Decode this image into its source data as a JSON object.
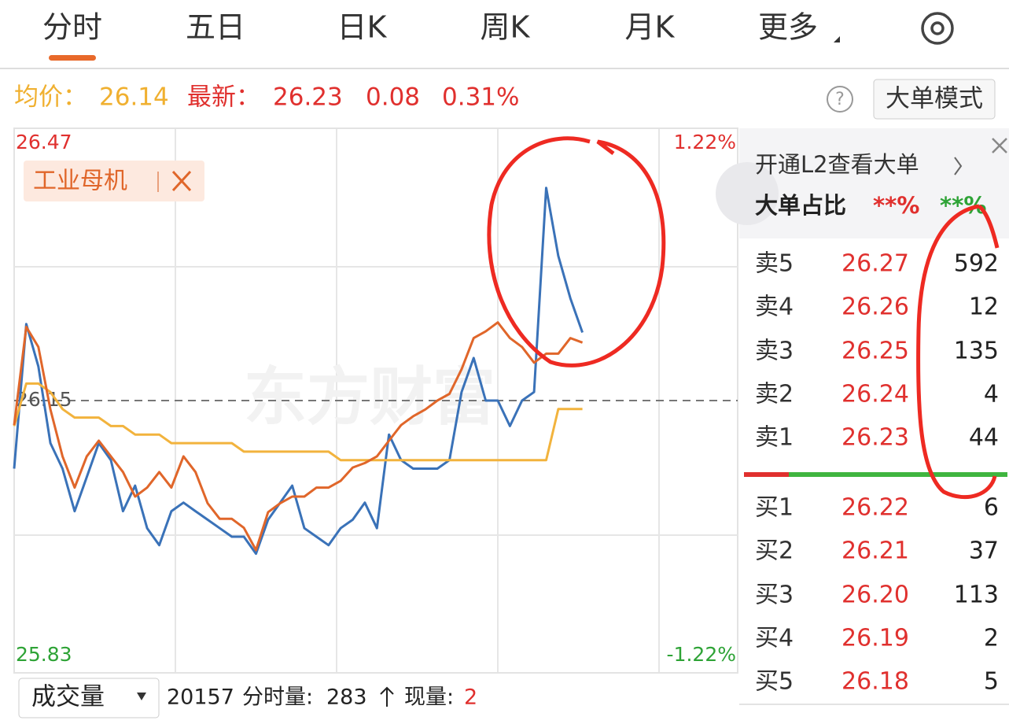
{
  "tabs": [
    "分时",
    "五日",
    "日K",
    "周K",
    "月K",
    "更多"
  ],
  "quote": {
    "avg_label": "均价：",
    "avg": "26.14",
    "latest_label": "最新：",
    "latest": "26.23",
    "change": "0.08",
    "change_pct": "0.31%"
  },
  "big_order_mode": "大单模式",
  "chart_data": {
    "type": "line",
    "tag": "工业母机",
    "watermark": "东方财富",
    "xlim": [
      0,
      240
    ],
    "x": [
      0,
      4.5,
      9,
      13.5,
      18,
      22.5,
      27,
      31.5,
      36,
      40.5,
      45,
      49.5,
      54,
      58.5,
      63,
      67.5,
      72,
      76.5,
      81,
      85.5,
      90,
      94.5,
      99,
      103.5,
      108,
      112.5,
      117,
      121.5,
      126,
      130.5,
      135,
      139.5,
      144,
      148.5,
      153,
      157.5,
      162,
      166.5,
      171,
      175.5,
      180,
      184.5,
      189,
      193.5,
      198,
      202.5,
      207,
      211.5
    ],
    "ylim": [
      25.83,
      26.47
    ],
    "yticks": [
      25.83,
      26.15,
      26.47
    ],
    "y2lim": [
      -1.22,
      1.22
    ],
    "y2ticks": [
      {
        "value": -1.22,
        "label": "-1.22%"
      },
      {
        "value": 1.22,
        "label": "1.22%"
      }
    ],
    "series": [
      {
        "color": "#3a72b8",
        "values": [
          26.07,
          26.24,
          26.19,
          26.1,
          26.07,
          26.02,
          26.06,
          26.1,
          26.08,
          26.02,
          26.05,
          26.0,
          25.98,
          26.02,
          26.03,
          26.02,
          26.01,
          26.0,
          25.99,
          25.99,
          25.97,
          26.01,
          26.03,
          26.05,
          26.0,
          25.99,
          25.98,
          26.0,
          26.01,
          26.03,
          26.0,
          26.11,
          26.08,
          26.07,
          26.07,
          26.07,
          26.08,
          26.16,
          26.2,
          26.15,
          26.15,
          26.12,
          26.15,
          26.16,
          26.4,
          26.32,
          26.27,
          26.23
        ]
      },
      {
        "color": "#f2b33d",
        "values": [
          26.12,
          26.17,
          26.17,
          26.16,
          26.14,
          26.13,
          26.13,
          26.13,
          26.12,
          26.12,
          26.11,
          26.11,
          26.11,
          26.1,
          26.1,
          26.1,
          26.1,
          26.1,
          26.1,
          26.09,
          26.09,
          26.09,
          26.09,
          26.09,
          26.09,
          26.09,
          26.09,
          26.08,
          26.08,
          26.08,
          26.08,
          26.08,
          26.08,
          26.08,
          26.08,
          26.08,
          26.08,
          26.08,
          26.08,
          26.08,
          26.08,
          26.08,
          26.08,
          26.08,
          26.08,
          26.14,
          26.14,
          26.14
        ]
      },
      {
        "color": "#e0662a",
        "axis": "y2",
        "values": [
          -0.11,
          0.33,
          0.24,
          -0.04,
          -0.25,
          -0.39,
          -0.25,
          -0.18,
          -0.25,
          -0.32,
          -0.43,
          -0.39,
          -0.32,
          -0.39,
          -0.25,
          -0.32,
          -0.46,
          -0.53,
          -0.53,
          -0.57,
          -0.67,
          -0.5,
          -0.46,
          -0.43,
          -0.43,
          -0.39,
          -0.39,
          -0.36,
          -0.3,
          -0.28,
          -0.25,
          -0.18,
          -0.11,
          -0.07,
          -0.04,
          0.0,
          0.03,
          0.14,
          0.28,
          0.31,
          0.35,
          0.28,
          0.24,
          0.17,
          0.21,
          0.21,
          0.28,
          0.26
        ]
      }
    ]
  },
  "level2": {
    "promo": "开通L2查看大单",
    "ratio_label": "大单占比",
    "buy_ratio": "**%",
    "sell_ratio": "**%"
  },
  "order_book": {
    "asks": [
      {
        "label": "卖5",
        "price": "26.27",
        "volume": "592"
      },
      {
        "label": "卖4",
        "price": "26.26",
        "volume": "12"
      },
      {
        "label": "卖3",
        "price": "26.25",
        "volume": "135"
      },
      {
        "label": "卖2",
        "price": "26.24",
        "volume": "4"
      },
      {
        "label": "卖1",
        "price": "26.23",
        "volume": "44"
      }
    ],
    "bids": [
      {
        "label": "买1",
        "price": "26.22",
        "volume": "6"
      },
      {
        "label": "买2",
        "price": "26.21",
        "volume": "37"
      },
      {
        "label": "买3",
        "price": "26.20",
        "volume": "113"
      },
      {
        "label": "买4",
        "price": "26.19",
        "volume": "2"
      },
      {
        "label": "买5",
        "price": "26.18",
        "volume": "5"
      }
    ]
  },
  "volume_bar": {
    "selector": "成交量",
    "total": "20157",
    "minute_label": "分时量:",
    "minute_volume": "283",
    "current_label": "现量:",
    "current": "2"
  }
}
